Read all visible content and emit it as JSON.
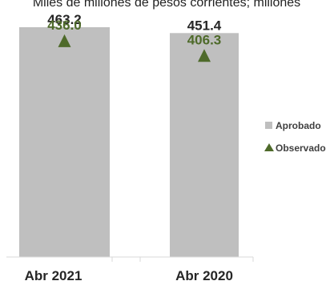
{
  "chart_data": {
    "type": "bar",
    "subtitle": "Miles de millones de pesos corrientes; millones",
    "categories": [
      "Abr 2021",
      "Abr 2020"
    ],
    "series": [
      {
        "name": "Aprobado",
        "type": "bar",
        "values": [
          463.2,
          451.4
        ],
        "labels": [
          "463.2",
          "451.4"
        ],
        "color": "#bfbfbf"
      },
      {
        "name": "Observado",
        "type": "marker",
        "values": [
          436.0,
          406.3
        ],
        "labels": [
          "436.0",
          "406.3"
        ],
        "color": "#4e6a2a"
      }
    ],
    "ylim": [
      0,
      463.2
    ],
    "grid": false,
    "legend_position": "right"
  }
}
